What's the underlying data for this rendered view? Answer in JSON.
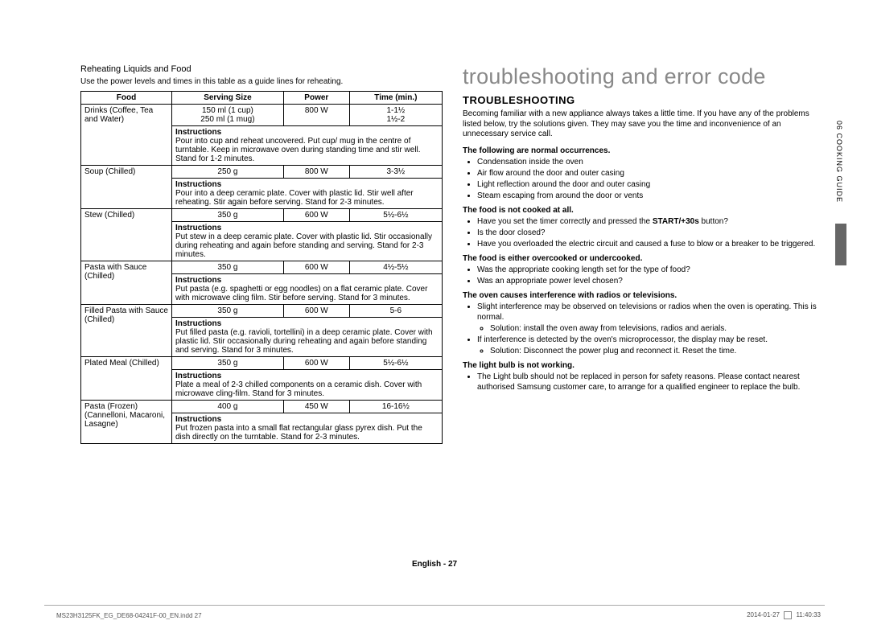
{
  "left": {
    "title": "Reheating Liquids and Food",
    "sub": "Use the power levels and times in this table as a guide lines for reheating.",
    "headers": [
      "Food",
      "Serving Size",
      "Power",
      "Time (min.)"
    ],
    "rows": [
      {
        "food": "Drinks (Coffee, Tea and Water)",
        "serving": "150 ml (1 cup)\n250 ml (1 mug)",
        "power": "800 W",
        "time": "1-1½\n1½-2",
        "instr": "Pour into cup and reheat uncovered. Put cup/ mug in the centre of turntable. Keep in microwave oven during standing time and stir well. Stand for 1-2 minutes."
      },
      {
        "food": "Soup (Chilled)",
        "serving": "250 g",
        "power": "800 W",
        "time": "3-3½",
        "instr": "Pour into a deep ceramic plate. Cover with plastic lid. Stir well after reheating. Stir again before serving. Stand for 2-3 minutes."
      },
      {
        "food": "Stew (Chilled)",
        "serving": "350 g",
        "power": "600 W",
        "time": "5½-6½",
        "instr": "Put stew in a deep ceramic plate. Cover with plastic lid. Stir occasionally during reheating and again before standing and serving. Stand for 2-3 minutes."
      },
      {
        "food": "Pasta with Sauce (Chilled)",
        "serving": "350 g",
        "power": "600 W",
        "time": "4½-5½",
        "instr": "Put pasta (e.g. spaghetti or egg noodles) on a flat ceramic plate. Cover with microwave cling film. Stir before serving. Stand for 3 minutes."
      },
      {
        "food": "Filled Pasta with Sauce (Chilled)",
        "serving": "350 g",
        "power": "600 W",
        "time": "5-6",
        "instr": "Put filled pasta (e.g. ravioli, tortellini) in a deep ceramic plate. Cover with plastic lid. Stir occasionally during reheating and again before standing and serving. Stand for 3 minutes."
      },
      {
        "food": "Plated Meal (Chilled)",
        "serving": "350 g",
        "power": "600 W",
        "time": "5½-6½",
        "instr": "Plate a meal of 2-3 chilled components on a ceramic dish. Cover with microwave cling-film. Stand for 3 minutes."
      },
      {
        "food": "Pasta (Frozen) (Cannelloni, Macaroni, Lasagne)",
        "serving": "400 g",
        "power": "450 W",
        "time": "16-16½",
        "instr": "Put frozen pasta into a small flat rectangular glass pyrex dish. Put the dish directly on the turntable. Stand for 2-3 minutes."
      }
    ],
    "instr_label": "Instructions"
  },
  "right": {
    "big": "troubleshooting and error code",
    "sub": "TROUBLESHOOTING",
    "intro": "Becoming familiar with a new appliance always takes a little time. If you have any of the problems listed below, try the solutions given. They may save you the time and inconvenience of an unnecessary service call.",
    "sections": [
      {
        "head": "The following are normal occurrences.",
        "items": [
          "Condensation inside the oven",
          "Air flow around the door and outer casing",
          "Light reflection around the door and outer casing",
          "Steam escaping from around the door or vents"
        ]
      },
      {
        "head": "The food is not cooked at all.",
        "items": [
          "Have you set the timer correctly and pressed the <b>START/+30s</b> button?",
          "Is the door closed?",
          "Have you overloaded the electric circuit and caused a fuse to blow or a breaker to be triggered."
        ]
      },
      {
        "head": "The food is either overcooked or undercooked.",
        "items": [
          "Was the appropriate cooking length set for the type of food?",
          "Was an appropriate power level chosen?"
        ]
      },
      {
        "head": "The oven causes interference with radios or televisions.",
        "items": [
          "Slight interference may be observed on televisions or radios when the oven is operating. This is normal.<ul><li>Solution: install the oven away from televisions, radios and aerials.</li></ul>",
          "If interference is detected by the oven's microprocessor, the display may be reset.<ul><li>Solution: Disconnect the power plug and reconnect it. Reset the time.</li></ul>"
        ]
      },
      {
        "head": "The light bulb is not working.",
        "items": [
          "The Light bulb should not be replaced in person for safety reasons. Please contact nearest authorised Samsung customer care, to arrange for a qualified engineer to replace the bulb."
        ]
      }
    ]
  },
  "side_tab": "06  COOKING GUIDE",
  "footer_center": "English - 27",
  "foot_left": "MS23H3125FK_EG_DE68-04241F-00_EN.indd   27",
  "foot_right_date": "2014-01-27",
  "foot_right_time": "11:40:33"
}
